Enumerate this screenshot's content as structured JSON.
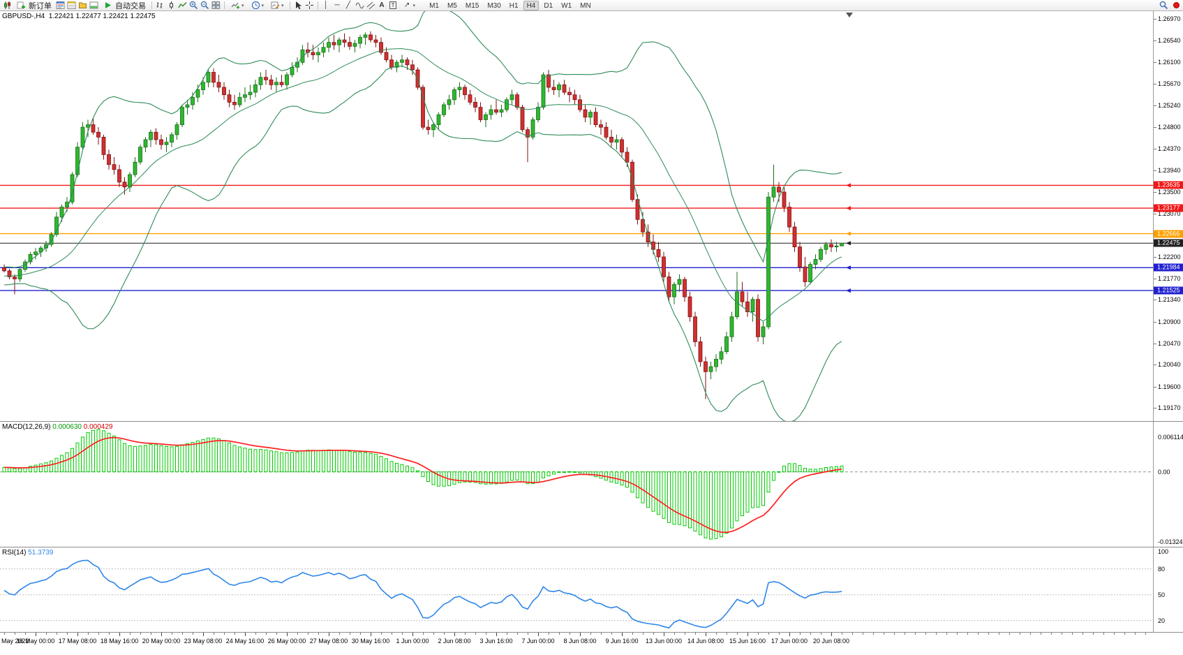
{
  "toolbar": {
    "new_order": "新订单",
    "autotrading": "自动交易",
    "timeframes": [
      "M1",
      "M5",
      "M15",
      "M30",
      "H1",
      "H4",
      "D1",
      "W1",
      "MN"
    ],
    "active_timeframe": "H4"
  },
  "chart_data": {
    "type": "candlestick",
    "symbol_label": "GBPUSD-,H4",
    "ohlc_text": "1.22421 1.22477 1.22421 1.22475",
    "price_max": 1.27125,
    "price_min": 1.1891,
    "price_axis_ticks": [
      "1.26970",
      "1.26540",
      "1.26100",
      "1.25670",
      "1.25240",
      "1.24800",
      "1.24370",
      "1.23940",
      "1.23500",
      "1.23070",
      "1.22630",
      "1.22200",
      "1.21770",
      "1.21340",
      "1.20900",
      "1.20470",
      "1.20040",
      "1.19600",
      "1.19170"
    ],
    "hlines": [
      {
        "price": 1.23635,
        "label": "1.23635",
        "color": "#F01818"
      },
      {
        "price": 1.23177,
        "label": "1.23177",
        "color": "#F01818"
      },
      {
        "price": 1.22666,
        "label": "1.22666",
        "color": "#FFA000"
      },
      {
        "price": 1.22475,
        "label": "1.22475",
        "color": "#202020",
        "current": true
      },
      {
        "price": 1.21984,
        "label": "1.21984",
        "color": "#2020D0"
      },
      {
        "price": 1.21525,
        "label": "1.21525",
        "color": "#2020D0"
      }
    ],
    "time_labels": [
      "May 2022",
      "16 May 00:00",
      "17 May 08:00",
      "18 May 16:00",
      "20 May 00:00",
      "23 May 08:00",
      "24 May 16:00",
      "26 May 00:00",
      "27 May 08:00",
      "30 May 16:00",
      "1 Jun 00:00",
      "2 Jun 08:00",
      "3 Jun 16:00",
      "7 Jun 00:00",
      "8 Jun 08:00",
      "9 Jun 16:00",
      "13 Jun 00:00",
      "14 Jun 08:00",
      "15 Jun 16:00",
      "17 Jun 00:00",
      "20 Jun 08:00"
    ],
    "colors": {
      "up": "#2eb82e",
      "up_border": "#1a6b1a",
      "down": "#d03030",
      "down_border": "#7d1212",
      "band": "#2E8B57",
      "macd_hist": "#00CC00",
      "macd_signal": "#FF2020",
      "rsi": "#2E86E8"
    },
    "candles": [
      [
        1.2198,
        1.2205,
        1.2189,
        1.2192
      ],
      [
        1.2192,
        1.2196,
        1.2175,
        1.218
      ],
      [
        1.218,
        1.2185,
        1.2145,
        1.2176
      ],
      [
        1.2176,
        1.2198,
        1.217,
        1.2195
      ],
      [
        1.2195,
        1.2215,
        1.219,
        1.221
      ],
      [
        1.221,
        1.223,
        1.2205,
        1.2225
      ],
      [
        1.2225,
        1.2238,
        1.2215,
        1.223
      ],
      [
        1.223,
        1.2242,
        1.222,
        1.2238
      ],
      [
        1.2238,
        1.2252,
        1.223,
        1.2245
      ],
      [
        1.2245,
        1.227,
        1.224,
        1.2265
      ],
      [
        1.2265,
        1.231,
        1.226,
        1.23
      ],
      [
        1.23,
        1.2325,
        1.229,
        1.232
      ],
      [
        1.232,
        1.234,
        1.231,
        1.233
      ],
      [
        1.233,
        1.239,
        1.2325,
        1.2385
      ],
      [
        1.2385,
        1.245,
        1.238,
        1.244
      ],
      [
        1.244,
        1.249,
        1.2435,
        1.248
      ],
      [
        1.248,
        1.2495,
        1.246,
        1.2485
      ],
      [
        1.2485,
        1.2498,
        1.2465,
        1.247
      ],
      [
        1.247,
        1.248,
        1.2445,
        1.246
      ],
      [
        1.246,
        1.2465,
        1.2415,
        1.2425
      ],
      [
        1.2425,
        1.2435,
        1.2395,
        1.2405
      ],
      [
        1.2405,
        1.242,
        1.2385,
        1.2395
      ],
      [
        1.2395,
        1.2405,
        1.236,
        1.237
      ],
      [
        1.237,
        1.238,
        1.2345,
        1.236
      ],
      [
        1.236,
        1.239,
        1.235,
        1.2385
      ],
      [
        1.2385,
        1.242,
        1.238,
        1.241
      ],
      [
        1.241,
        1.2445,
        1.2405,
        1.244
      ],
      [
        1.244,
        1.246,
        1.243,
        1.2455
      ],
      [
        1.2455,
        1.2475,
        1.244,
        1.247
      ],
      [
        1.247,
        1.2478,
        1.2445,
        1.2455
      ],
      [
        1.2455,
        1.2465,
        1.2435,
        1.2445
      ],
      [
        1.2445,
        1.246,
        1.243,
        1.245
      ],
      [
        1.245,
        1.247,
        1.244,
        1.2465
      ],
      [
        1.2465,
        1.249,
        1.2455,
        1.2485
      ],
      [
        1.2485,
        1.2525,
        1.248,
        1.252
      ],
      [
        1.252,
        1.2535,
        1.2505,
        1.2525
      ],
      [
        1.2525,
        1.255,
        1.2515,
        1.254
      ],
      [
        1.254,
        1.2565,
        1.253,
        1.2555
      ],
      [
        1.2555,
        1.258,
        1.2545,
        1.257
      ],
      [
        1.257,
        1.2595,
        1.256,
        1.259
      ],
      [
        1.259,
        1.2598,
        1.256,
        1.257
      ],
      [
        1.257,
        1.2585,
        1.255,
        1.256
      ],
      [
        1.256,
        1.257,
        1.2535,
        1.2545
      ],
      [
        1.2545,
        1.2555,
        1.252,
        1.253
      ],
      [
        1.253,
        1.2545,
        1.2515,
        1.2525
      ],
      [
        1.2525,
        1.255,
        1.252,
        1.254
      ],
      [
        1.254,
        1.256,
        1.253,
        1.2545
      ],
      [
        1.2545,
        1.2565,
        1.2535,
        1.255
      ],
      [
        1.255,
        1.2575,
        1.254,
        1.2565
      ],
      [
        1.2565,
        1.259,
        1.2555,
        1.258
      ],
      [
        1.258,
        1.2595,
        1.2565,
        1.2575
      ],
      [
        1.2575,
        1.2585,
        1.2555,
        1.2565
      ],
      [
        1.2565,
        1.258,
        1.255,
        1.257
      ],
      [
        1.257,
        1.2585,
        1.256,
        1.2565
      ],
      [
        1.2565,
        1.259,
        1.2555,
        1.2585
      ],
      [
        1.2585,
        1.261,
        1.258,
        1.26
      ],
      [
        1.26,
        1.262,
        1.259,
        1.261
      ],
      [
        1.261,
        1.2645,
        1.2605,
        1.2635
      ],
      [
        1.2635,
        1.265,
        1.262,
        1.263
      ],
      [
        1.263,
        1.2645,
        1.2615,
        1.2625
      ],
      [
        1.2625,
        1.264,
        1.261,
        1.263
      ],
      [
        1.263,
        1.265,
        1.262,
        1.264
      ],
      [
        1.264,
        1.266,
        1.263,
        1.265
      ],
      [
        1.265,
        1.2665,
        1.2635,
        1.2645
      ],
      [
        1.2645,
        1.266,
        1.263,
        1.2655
      ],
      [
        1.2655,
        1.2668,
        1.264,
        1.265
      ],
      [
        1.265,
        1.2662,
        1.2635,
        1.2642
      ],
      [
        1.2642,
        1.2655,
        1.263,
        1.2648
      ],
      [
        1.2648,
        1.2665,
        1.2638,
        1.266
      ],
      [
        1.266,
        1.267,
        1.2645,
        1.2665
      ],
      [
        1.2665,
        1.2672,
        1.265,
        1.2655
      ],
      [
        1.2655,
        1.2665,
        1.264,
        1.265
      ],
      [
        1.265,
        1.266,
        1.2625,
        1.263
      ],
      [
        1.263,
        1.264,
        1.261,
        1.2615
      ],
      [
        1.2615,
        1.2625,
        1.2595,
        1.26
      ],
      [
        1.26,
        1.2615,
        1.259,
        1.261
      ],
      [
        1.261,
        1.2625,
        1.26,
        1.2615
      ],
      [
        1.2615,
        1.262,
        1.2595,
        1.2605
      ],
      [
        1.2605,
        1.2615,
        1.2585,
        1.2595
      ],
      [
        1.2595,
        1.26,
        1.2555,
        1.256
      ],
      [
        1.256,
        1.2565,
        1.2475,
        1.248
      ],
      [
        1.248,
        1.2495,
        1.2465,
        1.2475
      ],
      [
        1.2475,
        1.249,
        1.246,
        1.2485
      ],
      [
        1.2485,
        1.251,
        1.2475,
        1.2505
      ],
      [
        1.2505,
        1.253,
        1.25,
        1.2525
      ],
      [
        1.2525,
        1.2545,
        1.2515,
        1.2535
      ],
      [
        1.2535,
        1.256,
        1.2525,
        1.2555
      ],
      [
        1.2555,
        1.257,
        1.254,
        1.256
      ],
      [
        1.256,
        1.2565,
        1.2535,
        1.2545
      ],
      [
        1.2545,
        1.2555,
        1.2525,
        1.253
      ],
      [
        1.253,
        1.254,
        1.251,
        1.252
      ],
      [
        1.252,
        1.253,
        1.249,
        1.2495
      ],
      [
        1.2495,
        1.251,
        1.248,
        1.2505
      ],
      [
        1.2505,
        1.2525,
        1.2495,
        1.2515
      ],
      [
        1.2515,
        1.2535,
        1.2505,
        1.251
      ],
      [
        1.251,
        1.2525,
        1.25,
        1.2515
      ],
      [
        1.2515,
        1.254,
        1.251,
        1.2535
      ],
      [
        1.2535,
        1.2555,
        1.2525,
        1.2545
      ],
      [
        1.2545,
        1.255,
        1.2515,
        1.252
      ],
      [
        1.252,
        1.2525,
        1.247,
        1.2475
      ],
      [
        1.2475,
        1.248,
        1.241,
        1.246
      ],
      [
        1.246,
        1.25,
        1.2455,
        1.2495
      ],
      [
        1.2495,
        1.253,
        1.249,
        1.252
      ],
      [
        1.252,
        1.259,
        1.2515,
        1.2585
      ],
      [
        1.2585,
        1.2595,
        1.255,
        1.256
      ],
      [
        1.256,
        1.2575,
        1.2545,
        1.2555
      ],
      [
        1.2555,
        1.257,
        1.254,
        1.2565
      ],
      [
        1.2565,
        1.2575,
        1.2545,
        1.255
      ],
      [
        1.255,
        1.256,
        1.253,
        1.2545
      ],
      [
        1.2545,
        1.2555,
        1.2525,
        1.2535
      ],
      [
        1.2535,
        1.2545,
        1.251,
        1.2515
      ],
      [
        1.2515,
        1.2525,
        1.249,
        1.25
      ],
      [
        1.25,
        1.2515,
        1.2485,
        1.251
      ],
      [
        1.251,
        1.252,
        1.248,
        1.2485
      ],
      [
        1.2485,
        1.2495,
        1.2465,
        1.248
      ],
      [
        1.248,
        1.249,
        1.2455,
        1.246
      ],
      [
        1.246,
        1.2475,
        1.244,
        1.245
      ],
      [
        1.245,
        1.2465,
        1.2435,
        1.2455
      ],
      [
        1.2455,
        1.246,
        1.242,
        1.243
      ],
      [
        1.243,
        1.244,
        1.24,
        1.241
      ],
      [
        1.241,
        1.2415,
        1.233,
        1.2335
      ],
      [
        1.2335,
        1.2345,
        1.2285,
        1.2295
      ],
      [
        1.2295,
        1.231,
        1.226,
        1.227
      ],
      [
        1.227,
        1.2285,
        1.224,
        1.225
      ],
      [
        1.225,
        1.2265,
        1.2225,
        1.2235
      ],
      [
        1.2235,
        1.225,
        1.221,
        1.222
      ],
      [
        1.222,
        1.223,
        1.217,
        1.218
      ],
      [
        1.218,
        1.219,
        1.213,
        1.214
      ],
      [
        1.214,
        1.217,
        1.2125,
        1.2165
      ],
      [
        1.2165,
        1.2185,
        1.215,
        1.2175
      ],
      [
        1.2175,
        1.218,
        1.213,
        1.214
      ],
      [
        1.214,
        1.215,
        1.209,
        1.21
      ],
      [
        1.21,
        1.211,
        1.204,
        1.205
      ],
      [
        1.205,
        1.206,
        1.2,
        1.201
      ],
      [
        1.201,
        1.202,
        1.1935,
        1.199
      ],
      [
        1.199,
        1.201,
        1.1975,
        1.2
      ],
      [
        1.2,
        1.2025,
        1.199,
        1.2015
      ],
      [
        1.2015,
        1.204,
        1.2005,
        1.203
      ],
      [
        1.203,
        1.207,
        1.2025,
        1.206
      ],
      [
        1.206,
        1.211,
        1.205,
        1.21
      ],
      [
        1.21,
        1.219,
        1.2095,
        1.215
      ],
      [
        1.215,
        1.217,
        1.212,
        1.213
      ],
      [
        1.213,
        1.215,
        1.21,
        1.211
      ],
      [
        1.211,
        1.214,
        1.209,
        1.2135
      ],
      [
        1.2135,
        1.2145,
        1.205,
        1.206
      ],
      [
        1.206,
        1.209,
        1.2045,
        1.208
      ],
      [
        1.208,
        1.235,
        1.2075,
        1.234
      ],
      [
        1.234,
        1.2405,
        1.233,
        1.236
      ],
      [
        1.236,
        1.237,
        1.233,
        1.235
      ],
      [
        1.235,
        1.236,
        1.231,
        1.232
      ],
      [
        1.232,
        1.233,
        1.227,
        1.228
      ],
      [
        1.228,
        1.229,
        1.223,
        1.224
      ],
      [
        1.224,
        1.225,
        1.219,
        1.22
      ],
      [
        1.22,
        1.222,
        1.216,
        1.217
      ],
      [
        1.217,
        1.221,
        1.2165,
        1.2205
      ],
      [
        1.2205,
        1.2225,
        1.2195,
        1.2215
      ],
      [
        1.2215,
        1.224,
        1.221,
        1.2235
      ],
      [
        1.2235,
        1.225,
        1.2225,
        1.2245
      ],
      [
        1.2245,
        1.2255,
        1.223,
        1.224
      ],
      [
        1.224,
        1.225,
        1.223,
        1.2242
      ],
      [
        1.22421,
        1.22477,
        1.22421,
        1.22475
      ]
    ]
  },
  "macd": {
    "name": "MACD(12,26,9)",
    "value_main": "0.000630",
    "value_signal": "0.000429",
    "axis_max": "0.006114",
    "axis_zero": "0.00",
    "axis_min": "-0.013241"
  },
  "rsi": {
    "name": "RSI(14)",
    "value": "51.3739",
    "levels": [
      {
        "v": 100,
        "label": "100"
      },
      {
        "v": 80,
        "label": "80"
      },
      {
        "v": 50,
        "label": "50"
      },
      {
        "v": 20,
        "label": "20"
      }
    ]
  }
}
